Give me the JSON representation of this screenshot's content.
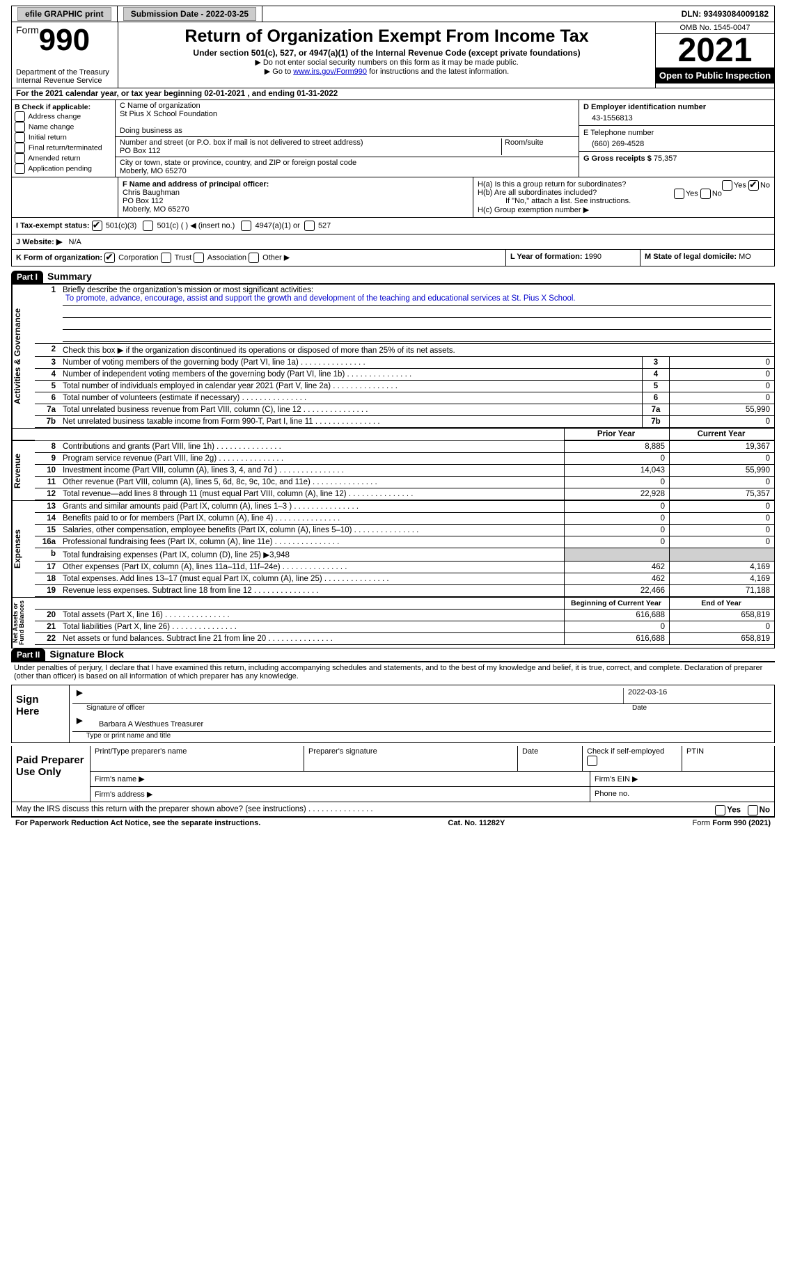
{
  "topbar": {
    "efile_label": "efile GRAPHIC print",
    "submission_label": "Submission Date - 2022-03-25",
    "dln_label": "DLN: 93493084009182"
  },
  "formhead": {
    "form_prefix": "Form",
    "form_number": "990",
    "title": "Return of Organization Exempt From Income Tax",
    "sub1": "Under section 501(c), 527, or 4947(a)(1) of the Internal Revenue Code (except private foundations)",
    "sub2": "▶ Do not enter social security numbers on this form as it may be made public.",
    "sub3_pre": "▶ Go to ",
    "sub3_link": "www.irs.gov/Form990",
    "sub3_post": " for instructions and the latest information.",
    "dept": "Department of the Treasury\nInternal Revenue Service",
    "omb": "OMB No. 1545-0047",
    "year": "2021",
    "open": "Open to Public Inspection"
  },
  "line_a": "For the 2021 calendar year, or tax year beginning 02-01-2021    , and ending 01-31-2022",
  "section_b": {
    "label": "B Check if applicable:",
    "items": [
      "Address change",
      "Name change",
      "Initial return",
      "Final return/terminated",
      "Amended return",
      "Application pending"
    ]
  },
  "section_c": {
    "name_label": "C Name of organization",
    "name": "St Pius X School Foundation",
    "dba_label": "Doing business as",
    "addr_label": "Number and street (or P.O. box if mail is not delivered to street address)",
    "room_label": "Room/suite",
    "addr": "PO Box 112",
    "city_label": "City or town, state or province, country, and ZIP or foreign postal code",
    "city": "Moberly, MO  65270"
  },
  "section_d": {
    "label": "D Employer identification number",
    "value": "43-1556813"
  },
  "section_e": {
    "label": "E Telephone number",
    "value": "(660) 269-4528"
  },
  "section_g": {
    "label": "G Gross receipts $",
    "value": "75,357"
  },
  "section_f": {
    "label": "F  Name and address of principal officer:",
    "name": "Chris Baughman",
    "addr1": "PO Box 112",
    "addr2": "Moberly, MO  65270"
  },
  "section_h": {
    "ha": "H(a)  Is this a group return for subordinates?",
    "hb": "H(b)  Are all subordinates included?",
    "hb_note": "If \"No,\" attach a list. See instructions.",
    "hc": "H(c)  Group exemption number ▶",
    "yes": "Yes",
    "no": "No"
  },
  "line_i": {
    "label": "I   Tax-exempt status:",
    "opts": [
      "501(c)(3)",
      "501(c) (  ) ◀ (insert no.)",
      "4947(a)(1) or",
      "527"
    ]
  },
  "line_j": {
    "label": "J   Website: ▶",
    "value": "N/A"
  },
  "line_k": {
    "label": "K Form of organization:",
    "opts": [
      "Corporation",
      "Trust",
      "Association",
      "Other ▶"
    ]
  },
  "line_l": {
    "label": "L Year of formation:",
    "value": "1990"
  },
  "line_m": {
    "label": "M State of legal domicile:",
    "value": "MO"
  },
  "parts": {
    "p1": "Part I",
    "p1t": "Summary",
    "p2": "Part II",
    "p2t": "Signature Block"
  },
  "summary": {
    "l1_label": "Briefly describe the organization's mission or most significant activities:",
    "l1_text": "To promote, advance, encourage, assist and support the growth and development of the teaching and educational services at St. Pius X School.",
    "l2": "Check this box ▶ if the organization discontinued its operations or disposed of more than 25% of its net assets.",
    "rows_a": [
      {
        "n": "3",
        "t": "Number of voting members of the governing body (Part VI, line 1a)",
        "v": "0"
      },
      {
        "n": "4",
        "t": "Number of independent voting members of the governing body (Part VI, line 1b)",
        "v": "0"
      },
      {
        "n": "5",
        "t": "Total number of individuals employed in calendar year 2021 (Part V, line 2a)",
        "v": "0"
      },
      {
        "n": "6",
        "t": "Total number of volunteers (estimate if necessary)",
        "v": "0"
      },
      {
        "n": "7a",
        "t": "Total unrelated business revenue from Part VIII, column (C), line 12",
        "v": "55,990"
      },
      {
        "n": "7b",
        "t": "Net unrelated business taxable income from Form 990-T, Part I, line 11",
        "v": "0"
      }
    ],
    "hdr_prior": "Prior Year",
    "hdr_curr": "Current Year",
    "rows_r": [
      {
        "n": "8",
        "t": "Contributions and grants (Part VIII, line 1h)",
        "p": "8,885",
        "c": "19,367"
      },
      {
        "n": "9",
        "t": "Program service revenue (Part VIII, line 2g)",
        "p": "0",
        "c": "0"
      },
      {
        "n": "10",
        "t": "Investment income (Part VIII, column (A), lines 3, 4, and 7d )",
        "p": "14,043",
        "c": "55,990"
      },
      {
        "n": "11",
        "t": "Other revenue (Part VIII, column (A), lines 5, 6d, 8c, 9c, 10c, and 11e)",
        "p": "0",
        "c": "0"
      },
      {
        "n": "12",
        "t": "Total revenue—add lines 8 through 11 (must equal Part VIII, column (A), line 12)",
        "p": "22,928",
        "c": "75,357"
      }
    ],
    "rows_e": [
      {
        "n": "13",
        "t": "Grants and similar amounts paid (Part IX, column (A), lines 1–3 )",
        "p": "0",
        "c": "0"
      },
      {
        "n": "14",
        "t": "Benefits paid to or for members (Part IX, column (A), line 4)",
        "p": "0",
        "c": "0"
      },
      {
        "n": "15",
        "t": "Salaries, other compensation, employee benefits (Part IX, column (A), lines 5–10)",
        "p": "0",
        "c": "0"
      },
      {
        "n": "16a",
        "t": "Professional fundraising fees (Part IX, column (A), line 11e)",
        "p": "0",
        "c": "0"
      },
      {
        "n": "b",
        "t": "Total fundraising expenses (Part IX, column (D), line 25) ▶3,948",
        "p": "",
        "c": "",
        "grey": true
      },
      {
        "n": "17",
        "t": "Other expenses (Part IX, column (A), lines 11a–11d, 11f–24e)",
        "p": "462",
        "c": "4,169"
      },
      {
        "n": "18",
        "t": "Total expenses. Add lines 13–17 (must equal Part IX, column (A), line 25)",
        "p": "462",
        "c": "4,169"
      },
      {
        "n": "19",
        "t": "Revenue less expenses. Subtract line 18 from line 12",
        "p": "22,466",
        "c": "71,188"
      }
    ],
    "hdr_beg": "Beginning of Current Year",
    "hdr_end": "End of Year",
    "rows_n": [
      {
        "n": "20",
        "t": "Total assets (Part X, line 16)",
        "p": "616,688",
        "c": "658,819"
      },
      {
        "n": "21",
        "t": "Total liabilities (Part X, line 26)",
        "p": "0",
        "c": "0"
      },
      {
        "n": "22",
        "t": "Net assets or fund balances. Subtract line 21 from line 20",
        "p": "616,688",
        "c": "658,819"
      }
    ]
  },
  "vlabels": {
    "a": "Activities & Governance",
    "r": "Revenue",
    "e": "Expenses",
    "n": "Net Assets or\nFund Balances"
  },
  "sig": {
    "decl": "Under penalties of perjury, I declare that I have examined this return, including accompanying schedules and statements, and to the best of my knowledge and belief, it is true, correct, and complete. Declaration of preparer (other than officer) is based on all information of which preparer has any knowledge.",
    "sign_here": "Sign Here",
    "sig_officer": "Signature of officer",
    "date": "Date",
    "date_val": "2022-03-16",
    "name_val": "Barbara A Westhues  Treasurer",
    "name_lbl": "Type or print name and title",
    "paid": "Paid Preparer Use Only",
    "p1": "Print/Type preparer's name",
    "p2": "Preparer's signature",
    "p3": "Date",
    "p4": "Check         if self-employed",
    "p5": "PTIN",
    "p6": "Firm's name  ▶",
    "p7": "Firm's EIN ▶",
    "p8": "Firm's address ▶",
    "p9": "Phone no.",
    "may": "May the IRS discuss this return with the preparer shown above? (see instructions)"
  },
  "footer": {
    "pra": "For Paperwork Reduction Act Notice, see the separate instructions.",
    "cat": "Cat. No. 11282Y",
    "form": "Form 990 (2021)"
  }
}
